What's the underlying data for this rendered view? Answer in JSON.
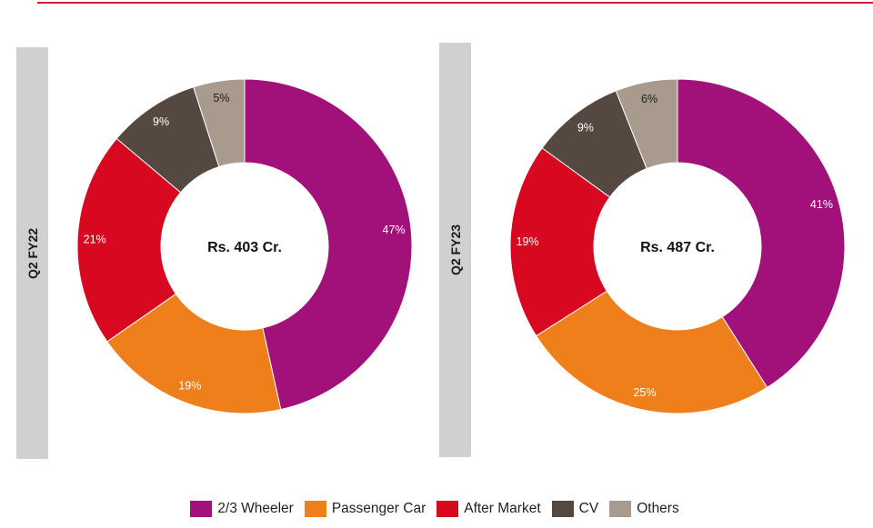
{
  "chart_data": [
    {
      "type": "pie",
      "period": "Q2 FY22",
      "center_label": "Rs. 403 Cr.",
      "categories": [
        "2/3 Wheeler",
        "Passenger Car",
        "After Market",
        "CV",
        "Others"
      ],
      "values": [
        47,
        19,
        21,
        9,
        5
      ],
      "labels": [
        "47%",
        "19%",
        "21%",
        "9%",
        "5%"
      ]
    },
    {
      "type": "pie",
      "period": "Q2 FY23",
      "center_label": "Rs. 487 Cr.",
      "categories": [
        "2/3 Wheeler",
        "Passenger Car",
        "After Market",
        "CV",
        "Others"
      ],
      "values": [
        41,
        25,
        19,
        9,
        6
      ],
      "labels": [
        "41%",
        "25%",
        "19%",
        "9%",
        "6%"
      ]
    }
  ],
  "legend": [
    {
      "label": "2/3 Wheeler",
      "color": "#a2117a"
    },
    {
      "label": "Passenger Car",
      "color": "#ef7f1a"
    },
    {
      "label": "After Market",
      "color": "#d7081f"
    },
    {
      "label": "CV",
      "color": "#544840"
    },
    {
      "label": "Others",
      "color": "#a89a8c"
    }
  ],
  "colors": {
    "accent_rule": "#d31c3a",
    "side_bar": "#d0d0d0"
  }
}
